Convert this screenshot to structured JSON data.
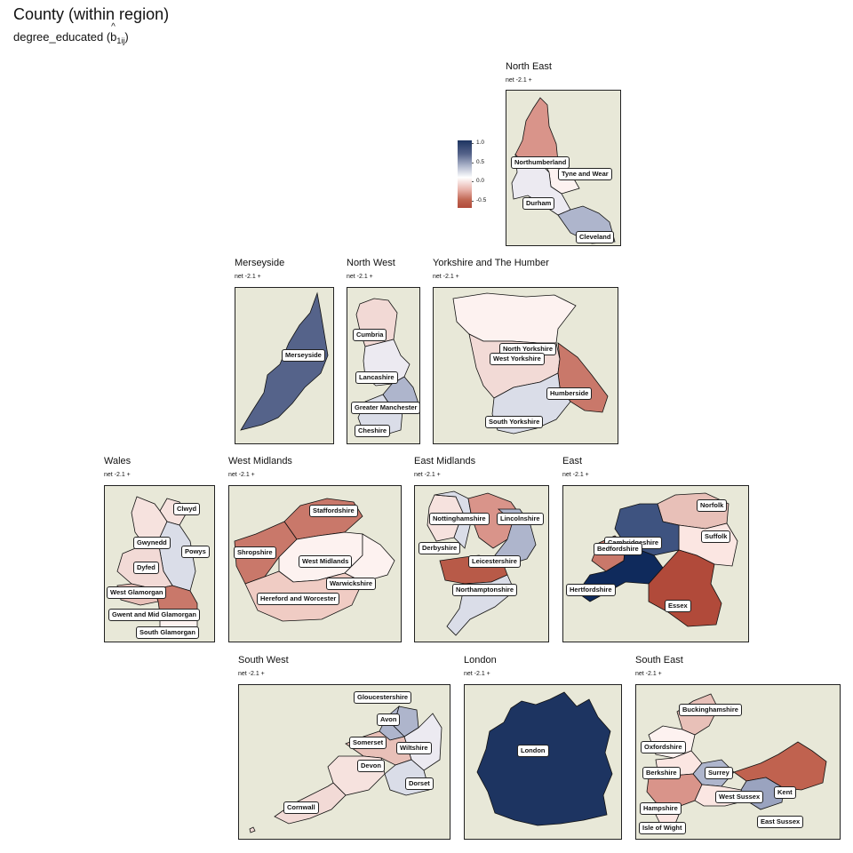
{
  "title": "County (within region)",
  "subtitle": {
    "var": "degree_educated (",
    "b": "b",
    "sub": "1ij",
    "close": ")"
  },
  "legend": {
    "ticks": [
      {
        "label": "1.0",
        "value": 1.0
      },
      {
        "label": "0.5",
        "value": 0.5
      },
      {
        "label": "0.0",
        "value": 0.0
      },
      {
        "label": "-0.5",
        "value": -0.5
      }
    ],
    "colors": [
      "#1d3461",
      "#ffffff",
      "#b14a3a"
    ]
  },
  "regions": {
    "north_east": {
      "title": "North East",
      "net": "net -2.1 +",
      "counties": [
        "Northumberland",
        "Tyne and Wear",
        "Durham",
        "Cleveland"
      ]
    },
    "merseyside": {
      "title": "Merseyside",
      "net": "net -2.1 +",
      "counties": [
        "Merseyside"
      ]
    },
    "north_west": {
      "title": "North West",
      "net": "net -2.1 +",
      "counties": [
        "Cumbria",
        "Lancashire",
        "Greater Manchester",
        "Cheshire"
      ]
    },
    "yorkshire": {
      "title": "Yorkshire and The Humber",
      "net": "net -2.1 +",
      "counties": [
        "North Yorkshire",
        "West Yorkshire",
        "Humberside",
        "South Yorkshire"
      ]
    },
    "wales": {
      "title": "Wales",
      "net": "net -2.1 +",
      "counties": [
        "Clwyd",
        "Gwynedd",
        "Powys",
        "Dyfed",
        "West Glamorgan",
        "Gwent and Mid Glamorgan",
        "South Glamorgan"
      ]
    },
    "west_midlands": {
      "title": "West Midlands",
      "net": "net -2.1 +",
      "counties": [
        "Staffordshire",
        "Shropshire",
        "West Midlands",
        "Warwickshire",
        "Hereford and Worcester"
      ]
    },
    "east_midlands": {
      "title": "East Midlands",
      "net": "net -2.1 +",
      "counties": [
        "Nottinghamshire",
        "Lincolnshire",
        "Derbyshire",
        "Leicestershire",
        "Northamptonshire"
      ]
    },
    "east": {
      "title": "East",
      "net": "net -2.1 +",
      "counties": [
        "Norfolk",
        "Suffolk",
        "Cambridgeshire",
        "Bedfordshire",
        "Hertfordshire",
        "Essex"
      ]
    },
    "south_west": {
      "title": "South West",
      "net": "net -2.1 +",
      "counties": [
        "Gloucestershire",
        "Avon",
        "Somerset",
        "Wiltshire",
        "Devon",
        "Dorset",
        "Cornwall"
      ]
    },
    "london": {
      "title": "London",
      "net": "net -2.1 +",
      "counties": [
        "London"
      ]
    },
    "south_east": {
      "title": "South East",
      "net": "net -2.1 +",
      "counties": [
        "Buckinghamshire",
        "Oxfordshire",
        "Berkshire",
        "Surrey",
        "West Sussex",
        "Kent",
        "Hampshire",
        "East Sussex",
        "Isle of Wight"
      ]
    }
  }
}
